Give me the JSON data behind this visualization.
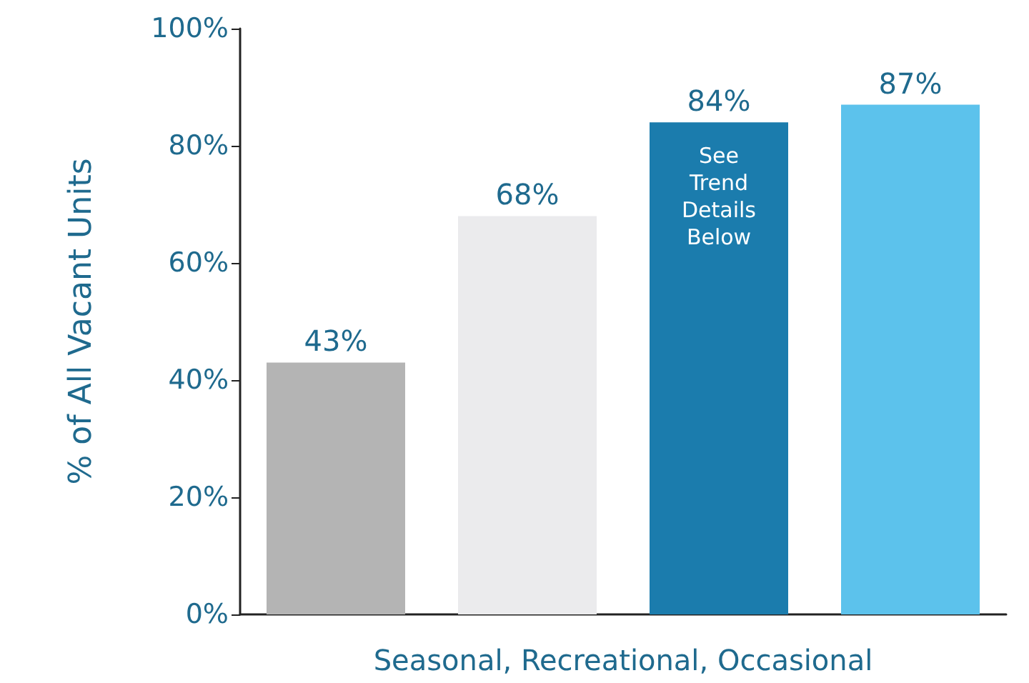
{
  "chart_data": {
    "type": "bar",
    "xlabel": "Seasonal, Recreational, Occasional",
    "ylabel": "% of All Vacant Units",
    "categories": [
      null,
      null,
      null,
      null
    ],
    "values": [
      43,
      68,
      84,
      87
    ],
    "colors": [
      "#b4b4b4",
      "#ebebed",
      "#1b7cad",
      "#5cc2ec"
    ],
    "value_labels": [
      "43%",
      "68%",
      "84%",
      "87%"
    ],
    "ylim": [
      0,
      100
    ],
    "yticks": [
      {
        "value": 0,
        "label": "0%"
      },
      {
        "value": 20,
        "label": "20%"
      },
      {
        "value": 40,
        "label": "40%"
      },
      {
        "value": 60,
        "label": "60%"
      },
      {
        "value": 80,
        "label": "80%"
      },
      {
        "value": 100,
        "label": "100%"
      }
    ],
    "annotations": [
      "See\nTrend\nDetails\nBelow"
    ],
    "grid": false
  }
}
